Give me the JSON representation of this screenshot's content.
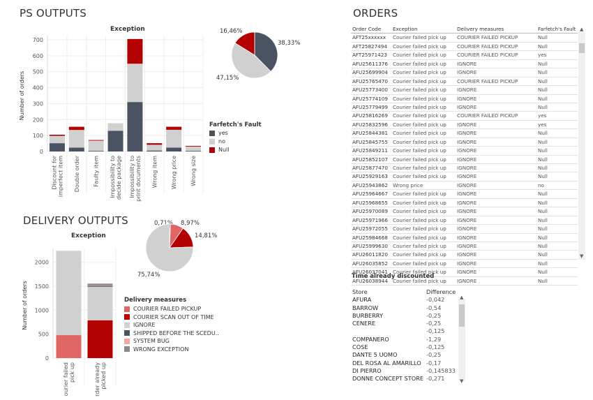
{
  "ps_outputs": {
    "section_title": "PS OUTPUTS",
    "bar_chart": {
      "type": "bar",
      "title": "Exception",
      "ylabel": "Number of orders",
      "ylim": [
        0,
        700
      ],
      "yticks": [
        0,
        100,
        200,
        300,
        400,
        500,
        600,
        700
      ],
      "categories": [
        "Discount for imperfect item",
        "Double order",
        "Faulty item",
        "Impossibility to decide package",
        "Impossibility to print documents",
        "Wrong item",
        "Wrong price",
        "Wrong size"
      ],
      "category_lines": [
        [
          "Discount for",
          "imperfect item"
        ],
        [
          "Double order"
        ],
        [
          "Faulty item"
        ],
        [
          "Impossibility to",
          "decide package"
        ],
        [
          "Impossibility to",
          "print documents"
        ],
        [
          "Wrong item"
        ],
        [
          "Wrong price"
        ],
        [
          "Wrong size"
        ]
      ],
      "series": [
        {
          "name": "yes",
          "color": "#4a5361",
          "values": [
            52,
            24,
            4,
            130,
            310,
            6,
            24,
            4
          ]
        },
        {
          "name": "no",
          "color": "#d0d0d0",
          "values": [
            46,
            111,
            64,
            47,
            240,
            36,
            112,
            27
          ]
        },
        {
          "name": "Null",
          "color": "#b30000",
          "values": [
            7,
            20,
            4,
            0,
            155,
            10,
            19,
            4
          ]
        }
      ]
    },
    "pie_chart": {
      "type": "pie",
      "slices": [
        {
          "name": "yes",
          "value": 38.33,
          "label": "38,33%",
          "color": "#4a5361"
        },
        {
          "name": "no",
          "value": 47.15,
          "label": "47,15%",
          "color": "#d0d0d0"
        },
        {
          "name": "Null",
          "value": 16.46,
          "label": "16,46%",
          "color": "#b30000"
        }
      ]
    },
    "legend": {
      "title": "Farfetch's Fault",
      "items": [
        {
          "label": "yes",
          "color": "#4a5361"
        },
        {
          "label": "no",
          "color": "#d0d0d0"
        },
        {
          "label": "Null",
          "color": "#b30000"
        }
      ]
    }
  },
  "delivery_outputs": {
    "section_title": "DELIVERY OUTPUTS",
    "bar_chart": {
      "type": "bar",
      "title": "Exception",
      "ylabel": "Number of orders",
      "ylim": [
        0,
        2200
      ],
      "yticks": [
        0,
        500,
        1000,
        1500,
        2000
      ],
      "categories": [
        "Courier failed pick up",
        "Order already picked up"
      ],
      "category_lines": [
        [
          "ourier failed",
          "pick up"
        ],
        [
          "rder already",
          "picked up"
        ]
      ],
      "series": [
        {
          "name": "COURIER FAILED PICKUP",
          "color": "#e06666",
          "values": [
            480,
            0
          ]
        },
        {
          "name": "COURIER SCAN OUT OF TIME",
          "color": "#b30000",
          "values": [
            0,
            790
          ]
        },
        {
          "name": "IGNORE",
          "color": "#d0d0d0",
          "values": [
            1760,
            700
          ]
        },
        {
          "name": "SHIPPED BEFORE THE SCEDU...",
          "color": "#4a5361",
          "values": [
            0,
            20
          ]
        },
        {
          "name": "SYSTEM BUG",
          "color": "#f4a6a6",
          "values": [
            0,
            10
          ]
        },
        {
          "name": "WRONG EXCEPTION",
          "color": "#8a8a8a",
          "values": [
            0,
            35
          ]
        }
      ]
    },
    "pie_chart": {
      "type": "pie",
      "slices": [
        {
          "name": "SHIPPED BEFORE THE SCEDU...",
          "value": 0.71,
          "label": "0,71%",
          "color": "#4a5361"
        },
        {
          "name": "COURIER FAILED PICKUP",
          "value": 8.97,
          "label": "8,97%",
          "color": "#e06666"
        },
        {
          "name": "COURIER SCAN OUT OF TIME",
          "value": 14.81,
          "label": "14,81%",
          "color": "#b30000"
        },
        {
          "name": "IGNORE",
          "value": 75.74,
          "label": "75,74%",
          "color": "#d0d0d0"
        }
      ]
    },
    "legend": {
      "title": "Delivery measures",
      "items": [
        {
          "label": "COURIER FAILED PICKUP",
          "color": "#e06666"
        },
        {
          "label": "COURIER  SCAN OUT OF TIME",
          "color": "#b30000"
        },
        {
          "label": "IGNORE",
          "color": "#d0d0d0"
        },
        {
          "label": "SHIPPED  BEFORE THE SCEDU..",
          "color": "#4a5361"
        },
        {
          "label": "SYSTEM BUG",
          "color": "#f4a6a6"
        },
        {
          "label": "WRONG EXCEPTION",
          "color": "#8a8a8a"
        }
      ]
    }
  },
  "orders": {
    "section_title": "ORDERS",
    "columns": [
      "Order Code",
      "Exception",
      "Delivery measures",
      "Farfetch's Fault"
    ],
    "rows": [
      [
        "AFT25xxxxxx",
        "Courier failed pick up",
        "COURIER FAILED PICKUP",
        "Null"
      ],
      [
        "AFT25827494",
        "Courier failed pick up",
        "COURIER FAILED PICKUP",
        "Null"
      ],
      [
        "AFT25971423",
        "Courier failed pick up",
        "COURIER FAILED PICKUP",
        "yes"
      ],
      [
        "AFU25611376",
        "Courier failed pick up",
        "IGNORE",
        "Null"
      ],
      [
        "AFU25699904",
        "Courier failed pick up",
        "IGNORE",
        "Null"
      ],
      [
        "AFU25765470",
        "Courier failed pick up",
        "COURIER FAILED PICKUP",
        "Null"
      ],
      [
        "AFU25773400",
        "Courier failed pick up",
        "IGNORE",
        "Null"
      ],
      [
        "AFU25774109",
        "Courier failed pick up",
        "IGNORE",
        "Null"
      ],
      [
        "AFU25779499",
        "Courier failed pick up",
        "IGNORE",
        "Null"
      ],
      [
        "AFU25816269",
        "Courier failed pick up",
        "COURIER FAILED PICKUP",
        "yes"
      ],
      [
        "AFU25832596",
        "Courier failed pick up",
        "IGNORE",
        "yes"
      ],
      [
        "AFU25844381",
        "Courier failed pick up",
        "IGNORE",
        "Null"
      ],
      [
        "AFU25845755",
        "Courier failed pick up",
        "IGNORE",
        "Null"
      ],
      [
        "AFU25849211",
        "Courier failed pick up",
        "IGNORE",
        "Null"
      ],
      [
        "AFU25852107",
        "Courier failed pick up",
        "IGNORE",
        "Null"
      ],
      [
        "AFU25877470",
        "Courier failed pick up",
        "IGNORE",
        "Null"
      ],
      [
        "AFU25929163",
        "Courier failed pick up",
        "IGNORE",
        "Null"
      ],
      [
        "AFU25943862",
        "Wrong price",
        "IGNORE",
        "no"
      ],
      [
        "AFU25964667",
        "Courier failed pick up",
        "IGNORE",
        "Null"
      ],
      [
        "AFU25968655",
        "Courier failed pick up",
        "IGNORE",
        "Null"
      ],
      [
        "AFU25970089",
        "Courier failed pick up",
        "IGNORE",
        "Null"
      ],
      [
        "AFU25971966",
        "Courier failed pick up",
        "IGNORE",
        "Null"
      ],
      [
        "AFU25972055",
        "Courier failed pick up",
        "IGNORE",
        "Null"
      ],
      [
        "AFU25984668",
        "Courier failed pick up",
        "IGNORE",
        "Null"
      ],
      [
        "AFU25999630",
        "Courier failed pick up",
        "IGNORE",
        "Null"
      ],
      [
        "AFU26011820",
        "Courier failed pick up",
        "IGNORE",
        "Null"
      ],
      [
        "AFU26035852",
        "Courier failed pick up",
        "IGNORE",
        "Null"
      ],
      [
        "AFU26037041",
        "Courier failed pick up",
        "IGNORE",
        "Null"
      ],
      [
        "AFU26038944",
        "Courier failed pick up",
        "IGNORE",
        "Null"
      ]
    ]
  },
  "time_discounted": {
    "title": "Time already discounted",
    "columns": [
      "Store",
      "Difference"
    ],
    "rows": [
      [
        "AFURA",
        "-0,042"
      ],
      [
        "BARROW",
        "-0,54"
      ],
      [
        "BURBERRY",
        "-0,25"
      ],
      [
        "CENERE",
        "-0,25"
      ],
      [
        "",
        "-0,125"
      ],
      [
        "COMPANERO",
        "-1,29"
      ],
      [
        "COSE",
        "-0,125"
      ],
      [
        "DANTE 5 UOMO",
        "-0,25"
      ],
      [
        "DEL ROSA AL AMARILLO",
        "-0,17"
      ],
      [
        "DI PIERRO",
        "-0,145833"
      ],
      [
        "DONNE CONCEPT STORE",
        "-0,271"
      ]
    ]
  }
}
